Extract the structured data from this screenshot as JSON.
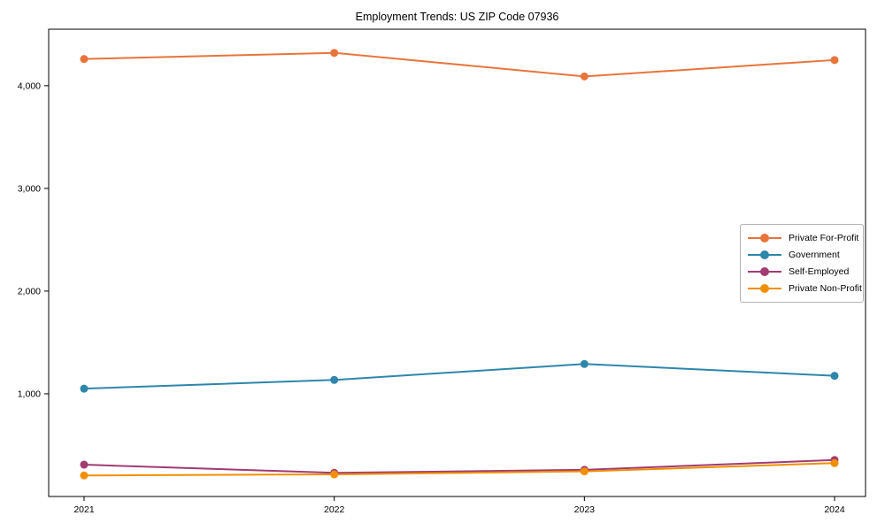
{
  "title": "Employment Trends: US ZIP Code 07936",
  "chart_data": {
    "type": "line",
    "title": "Employment Trends: US ZIP Code 07936",
    "xlabel": "",
    "ylabel": "",
    "x": [
      "2021",
      "2022",
      "2023",
      "2024"
    ],
    "series": [
      {
        "name": "Private For-Profit",
        "color": "#E8743B",
        "values": [
          4260,
          4320,
          4090,
          4250
        ]
      },
      {
        "name": "Government",
        "color": "#2E86AB",
        "values": [
          1050,
          1135,
          1290,
          1175
        ]
      },
      {
        "name": "Self-Employed",
        "color": "#A23B72",
        "values": [
          310,
          230,
          260,
          355
        ]
      },
      {
        "name": "Private Non-Profit",
        "color": "#F18F01",
        "values": [
          205,
          215,
          245,
          325
        ]
      }
    ],
    "ylim": [
      0,
      4550
    ],
    "yticks": [
      1000,
      2000,
      3000,
      4000
    ],
    "ytick_labels": [
      "1,000",
      "2,000",
      "3,000",
      "4,000"
    ],
    "grid": false,
    "legend_position": "right-middle",
    "axis_color": "#000000",
    "tick_label_color": "#000000"
  }
}
